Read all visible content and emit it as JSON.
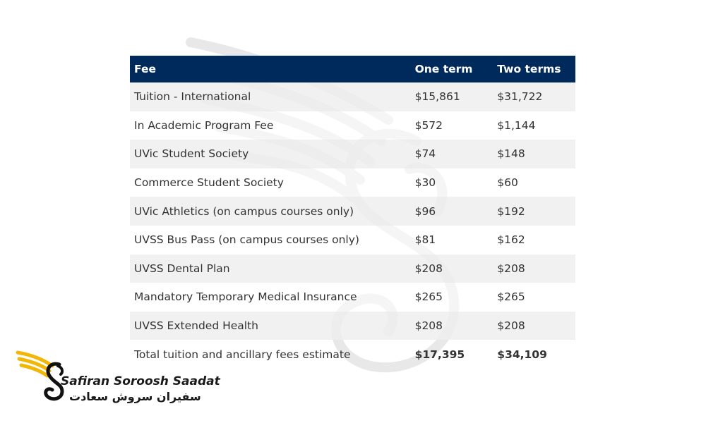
{
  "table": {
    "headers": {
      "fee": "Fee",
      "one_term": "One term",
      "two_terms": "Two terms"
    },
    "rows": [
      {
        "fee": "Tuition - International",
        "one_term": "$15,861",
        "two_terms": "$31,722"
      },
      {
        "fee": "In Academic Program Fee",
        "one_term": "$572",
        "two_terms": "$1,144"
      },
      {
        "fee": "UVic Student Society",
        "one_term": "$74",
        "two_terms": "$148"
      },
      {
        "fee": "Commerce Student Society",
        "one_term": "$30",
        "two_terms": "$60"
      },
      {
        "fee": "UVic Athletics (on campus courses only)",
        "one_term": "$96",
        "two_terms": "$192"
      },
      {
        "fee": "UVSS Bus Pass (on campus courses only)",
        "one_term": "$81",
        "two_terms": "$162"
      },
      {
        "fee": "UVSS Dental Plan",
        "one_term": "$208",
        "two_terms": "$208"
      },
      {
        "fee": "Mandatory Temporary Medical Insurance",
        "one_term": "$265",
        "two_terms": "$265"
      },
      {
        "fee": "UVSS Extended Health",
        "one_term": "$208",
        "two_terms": "$208"
      }
    ],
    "total": {
      "fee": "Total tuition and ancillary fees estimate",
      "one_term": "$17,395",
      "two_terms": "$34,109"
    }
  },
  "logo": {
    "name_en": "Safiran Soroosh Saadat",
    "name_fa": "سفیران سروش سعادت",
    "icon": "winged-s-logo-icon"
  },
  "colors": {
    "header_bg": "#002a5c",
    "row_alt": "#eeeeee",
    "logo_gold": "#f2b705"
  }
}
